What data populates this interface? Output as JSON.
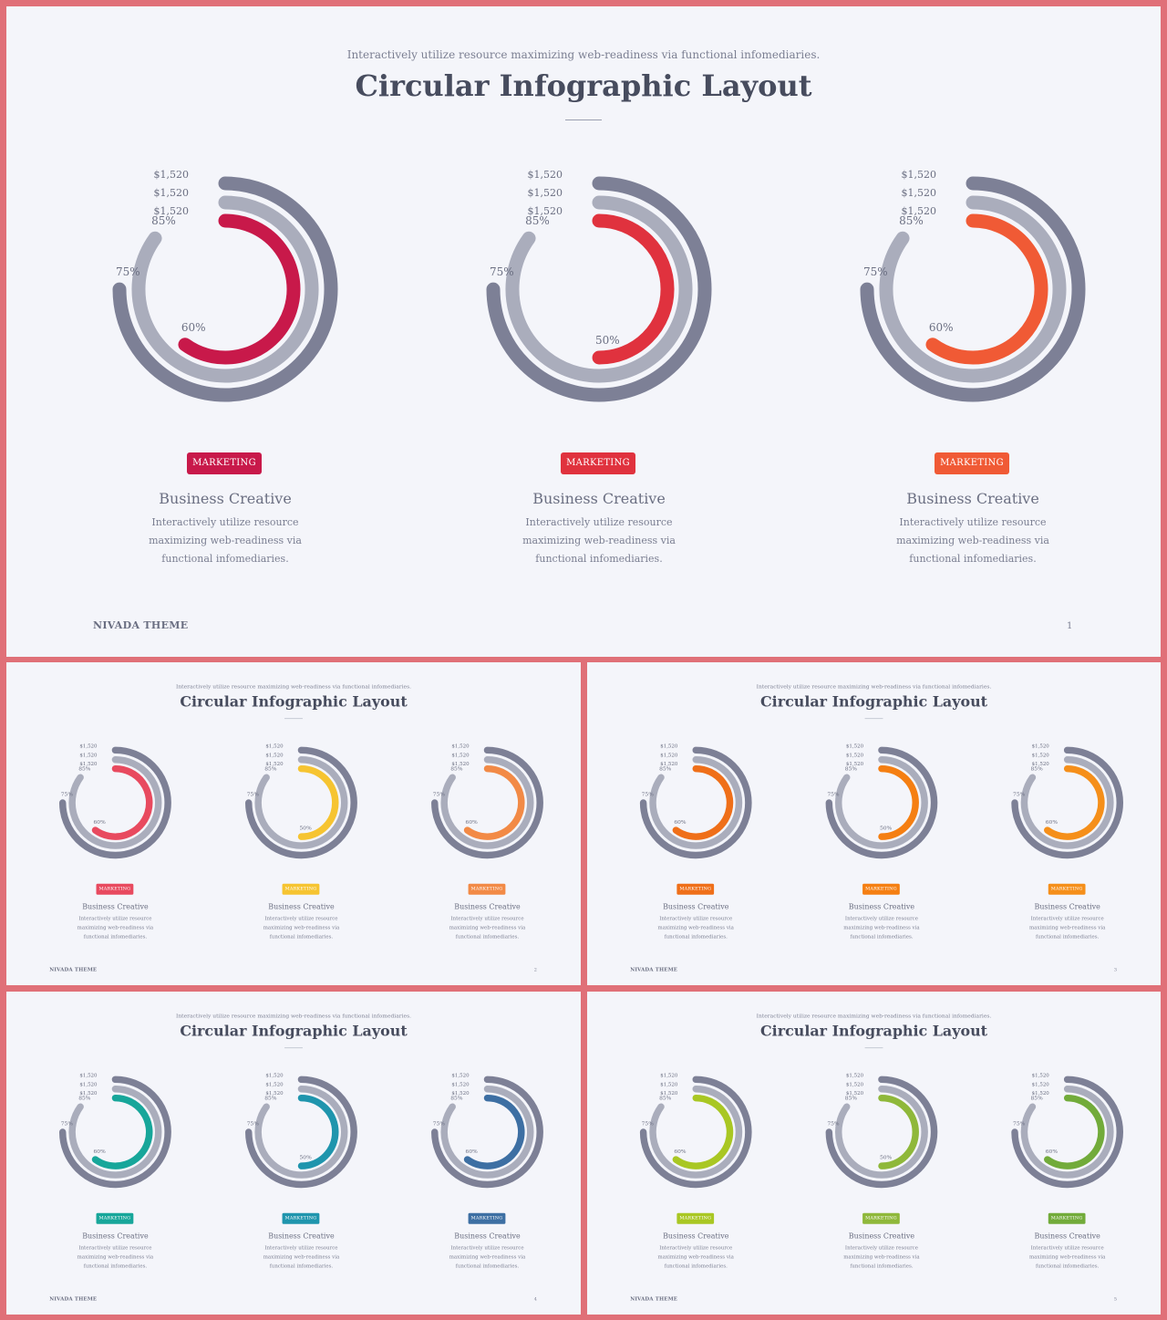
{
  "slides": [
    {
      "subtitle": "Interactively utilize resource maximizing web-readiness via functional infomediaries.",
      "title": "Circular Infographic Layout",
      "footer_brand": "NIVADA THEME",
      "page_number": "1",
      "cards": [
        {
          "color": "#c8194a",
          "outer_label": "75%",
          "middle_label": "85%",
          "inner_label": "60%",
          "prices": [
            "$1,520",
            "$1,520",
            "$1,520"
          ],
          "badge": "MARKETING",
          "heading": "Business Creative",
          "text": "Interactively utilize resource maximizing web-readiness via functional infomediaries."
        },
        {
          "color": "#e0323e",
          "outer_label": "75%",
          "middle_label": "85%",
          "inner_label": "50%",
          "prices": [
            "$1,520",
            "$1,520",
            "$1,520"
          ],
          "badge": "MARKETING",
          "heading": "Business Creative",
          "text": "Interactively utilize resource maximizing web-readiness via functional infomediaries."
        },
        {
          "color": "#f05a35",
          "outer_label": "75%",
          "middle_label": "85%",
          "inner_label": "60%",
          "prices": [
            "$1,520",
            "$1,520",
            "$1,520"
          ],
          "badge": "MARKETING",
          "heading": "Business Creative",
          "text": "Interactively utilize resource maximizing web-readiness via functional infomediaries."
        }
      ]
    },
    {
      "subtitle": "Interactively utilize resource maximizing web-readiness via functional infomediaries.",
      "title": "Circular Infographic Layout",
      "footer_brand": "NIVADA THEME",
      "page_number": "2",
      "cards": [
        {
          "color": "#e84a5f",
          "outer_label": "75%",
          "middle_label": "85%",
          "inner_label": "60%",
          "prices": [
            "$1,520",
            "$1,520",
            "$1,520"
          ],
          "badge": "MARKETING",
          "heading": "Business Creative",
          "text": "Interactively utilize resource maximizing web-readiness via functional infomediaries."
        },
        {
          "color": "#f6c431",
          "outer_label": "75%",
          "middle_label": "85%",
          "inner_label": "50%",
          "prices": [
            "$1,520",
            "$1,520",
            "$1,520"
          ],
          "badge": "MARKETING",
          "heading": "Business Creative",
          "text": "Interactively utilize resource maximizing web-readiness via functional infomediaries."
        },
        {
          "color": "#f28a46",
          "outer_label": "75%",
          "middle_label": "85%",
          "inner_label": "60%",
          "prices": [
            "$1,520",
            "$1,520",
            "$1,520"
          ],
          "badge": "MARKETING",
          "heading": "Business Creative",
          "text": "Interactively utilize resource maximizing web-readiness via functional infomediaries."
        }
      ]
    },
    {
      "subtitle": "Interactively utilize resource maximizing web-readiness via functional infomediaries.",
      "title": "Circular Infographic Layout",
      "footer_brand": "NIVADA THEME",
      "page_number": "3",
      "cards": [
        {
          "color": "#ef6f19",
          "outer_label": "75%",
          "middle_label": "85%",
          "inner_label": "60%",
          "prices": [
            "$1,520",
            "$1,520",
            "$1,520"
          ],
          "badge": "MARKETING",
          "heading": "Business Creative",
          "text": "Interactively utilize resource maximizing web-readiness via functional infomediaries."
        },
        {
          "color": "#f57f12",
          "outer_label": "75%",
          "middle_label": "85%",
          "inner_label": "50%",
          "prices": [
            "$1,520",
            "$1,520",
            "$1,520"
          ],
          "badge": "MARKETING",
          "heading": "Business Creative",
          "text": "Interactively utilize resource maximizing web-readiness via functional infomediaries."
        },
        {
          "color": "#f58f1a",
          "outer_label": "75%",
          "middle_label": "85%",
          "inner_label": "60%",
          "prices": [
            "$1,520",
            "$1,520",
            "$1,520"
          ],
          "badge": "MARKETING",
          "heading": "Business Creative",
          "text": "Interactively utilize resource maximizing web-readiness via functional infomediaries."
        }
      ]
    },
    {
      "subtitle": "Interactively utilize resource maximizing web-readiness via functional infomediaries.",
      "title": "Circular Infographic Layout",
      "footer_brand": "NIVADA THEME",
      "page_number": "4",
      "cards": [
        {
          "color": "#17a69a",
          "outer_label": "75%",
          "middle_label": "85%",
          "inner_label": "60%",
          "prices": [
            "$1,520",
            "$1,520",
            "$1,520"
          ],
          "badge": "MARKETING",
          "heading": "Business Creative",
          "text": "Interactively utilize resource maximizing web-readiness via functional infomediaries."
        },
        {
          "color": "#1f95ad",
          "outer_label": "75%",
          "middle_label": "85%",
          "inner_label": "50%",
          "prices": [
            "$1,520",
            "$1,520",
            "$1,520"
          ],
          "badge": "MARKETING",
          "heading": "Business Creative",
          "text": "Interactively utilize resource maximizing web-readiness via functional infomediaries."
        },
        {
          "color": "#3d6fa3",
          "outer_label": "75%",
          "middle_label": "85%",
          "inner_label": "60%",
          "prices": [
            "$1,520",
            "$1,520",
            "$1,520"
          ],
          "badge": "MARKETING",
          "heading": "Business Creative",
          "text": "Interactively utilize resource maximizing web-readiness via functional infomediaries."
        }
      ]
    },
    {
      "subtitle": "Interactively utilize resource maximizing web-readiness via functional infomediaries.",
      "title": "Circular Infographic Layout",
      "footer_brand": "NIVADA THEME",
      "page_number": "5",
      "cards": [
        {
          "color": "#a9c723",
          "outer_label": "75%",
          "middle_label": "85%",
          "inner_label": "60%",
          "prices": [
            "$1,520",
            "$1,520",
            "$1,520"
          ],
          "badge": "MARKETING",
          "heading": "Business Creative",
          "text": "Interactively utilize resource maximizing web-readiness via functional infomediaries."
        },
        {
          "color": "#8fb83a",
          "outer_label": "75%",
          "middle_label": "85%",
          "inner_label": "50%",
          "prices": [
            "$1,520",
            "$1,520",
            "$1,520"
          ],
          "badge": "MARKETING",
          "heading": "Business Creative",
          "text": "Interactively utilize resource maximizing web-readiness via functional infomediaries."
        },
        {
          "color": "#72ab3a",
          "outer_label": "75%",
          "middle_label": "85%",
          "inner_label": "60%",
          "prices": [
            "$1,520",
            "$1,520",
            "$1,520"
          ],
          "badge": "MARKETING",
          "heading": "Business Creative",
          "text": "Interactively utilize resource maximizing web-readiness via functional infomediaries."
        }
      ]
    }
  ],
  "ring_colors": {
    "outer": "#7d8096",
    "middle": "#aaadbc",
    "background": "#f4f5fa"
  }
}
